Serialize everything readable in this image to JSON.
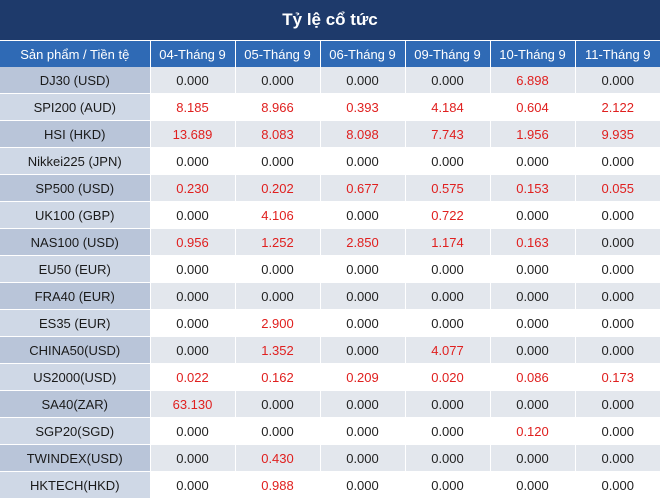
{
  "title": "Tỷ lệ cổ tức",
  "colors": {
    "header_dark": "#1e3a6b",
    "header_blue": "#2f6ab5",
    "positive": "#e0201f"
  },
  "columns": [
    "Sản phẩm / Tiền tệ",
    "04-Tháng 9",
    "05-Tháng 9",
    "06-Tháng 9",
    "09-Tháng 9",
    "10-Tháng 9",
    "11-Tháng 9"
  ],
  "rows": [
    {
      "product": "DJ30 (USD)",
      "values": [
        "0.000",
        "0.000",
        "0.000",
        "0.000",
        "6.898",
        "0.000"
      ]
    },
    {
      "product": "SPI200 (AUD)",
      "values": [
        "8.185",
        "8.966",
        "0.393",
        "4.184",
        "0.604",
        "2.122"
      ]
    },
    {
      "product": "HSI (HKD)",
      "values": [
        "13.689",
        "8.083",
        "8.098",
        "7.743",
        "1.956",
        "9.935"
      ]
    },
    {
      "product": "Nikkei225 (JPN)",
      "values": [
        "0.000",
        "0.000",
        "0.000",
        "0.000",
        "0.000",
        "0.000"
      ]
    },
    {
      "product": "SP500 (USD)",
      "values": [
        "0.230",
        "0.202",
        "0.677",
        "0.575",
        "0.153",
        "0.055"
      ]
    },
    {
      "product": "UK100 (GBP)",
      "values": [
        "0.000",
        "4.106",
        "0.000",
        "0.722",
        "0.000",
        "0.000"
      ]
    },
    {
      "product": "NAS100 (USD)",
      "values": [
        "0.956",
        "1.252",
        "2.850",
        "1.174",
        "0.163",
        "0.000"
      ]
    },
    {
      "product": "EU50 (EUR)",
      "values": [
        "0.000",
        "0.000",
        "0.000",
        "0.000",
        "0.000",
        "0.000"
      ]
    },
    {
      "product": "FRA40 (EUR)",
      "values": [
        "0.000",
        "0.000",
        "0.000",
        "0.000",
        "0.000",
        "0.000"
      ]
    },
    {
      "product": "ES35 (EUR)",
      "values": [
        "0.000",
        "2.900",
        "0.000",
        "0.000",
        "0.000",
        "0.000"
      ]
    },
    {
      "product": "CHINA50(USD)",
      "values": [
        "0.000",
        "1.352",
        "0.000",
        "4.077",
        "0.000",
        "0.000"
      ]
    },
    {
      "product": "US2000(USD)",
      "values": [
        "0.022",
        "0.162",
        "0.209",
        "0.020",
        "0.086",
        "0.173"
      ]
    },
    {
      "product": "SA40(ZAR)",
      "values": [
        "63.130",
        "0.000",
        "0.000",
        "0.000",
        "0.000",
        "0.000"
      ]
    },
    {
      "product": "SGP20(SGD)",
      "values": [
        "0.000",
        "0.000",
        "0.000",
        "0.000",
        "0.120",
        "0.000"
      ]
    },
    {
      "product": "TWINDEX(USD)",
      "values": [
        "0.000",
        "0.430",
        "0.000",
        "0.000",
        "0.000",
        "0.000"
      ]
    },
    {
      "product": "HKTECH(HKD)",
      "values": [
        "0.000",
        "0.988",
        "0.000",
        "0.000",
        "0.000",
        "0.000"
      ]
    }
  ]
}
